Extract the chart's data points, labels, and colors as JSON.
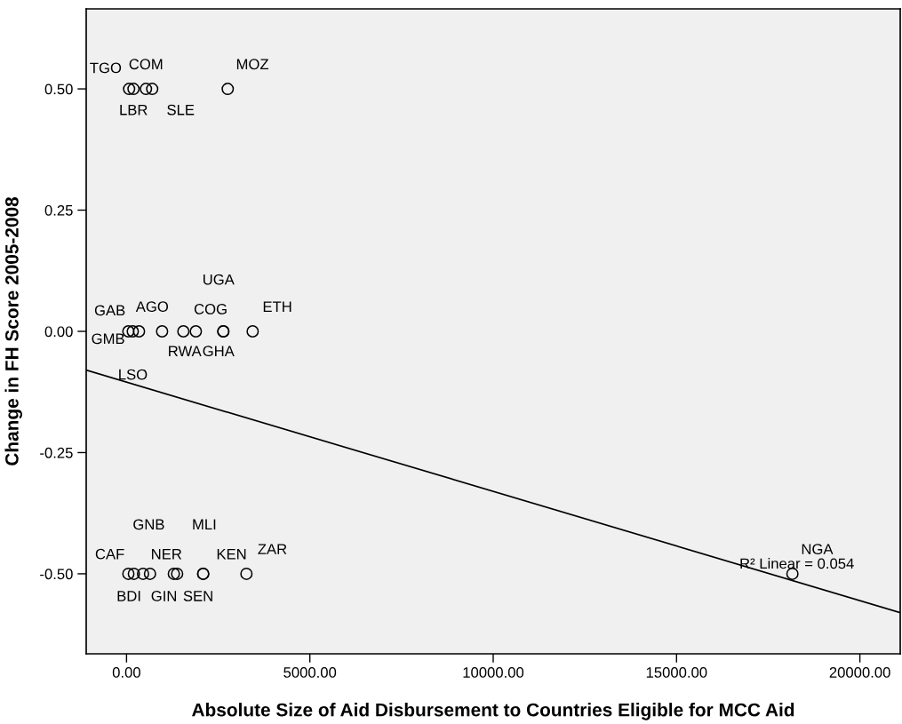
{
  "chart_data": {
    "type": "scatter",
    "xlabel": "Absolute Size of Aid Disbursement to Countries Eligible for MCC Aid",
    "ylabel": "Change in FH Score 2005-2008",
    "xlim": [
      -1100,
      21100
    ],
    "ylim": [
      -0.665,
      0.665
    ],
    "xticks": [
      {
        "value": 0,
        "label": "0.00"
      },
      {
        "value": 5000,
        "label": "5000.00"
      },
      {
        "value": 10000,
        "label": "10000.00"
      },
      {
        "value": 15000,
        "label": "15000.00"
      },
      {
        "value": 20000,
        "label": "20000.00"
      }
    ],
    "yticks": [
      {
        "value": -0.5,
        "label": "-0.50"
      },
      {
        "value": -0.25,
        "label": "-0.25"
      },
      {
        "value": 0,
        "label": "0.00"
      },
      {
        "value": 0.25,
        "label": "0.25"
      },
      {
        "value": 0.5,
        "label": "0.50"
      }
    ],
    "series": [
      {
        "color": "#000000",
        "marker": "circle",
        "x": [
          70,
          190,
          530,
          700,
          2760,
          50,
          170,
          340,
          970,
          1550,
          1890,
          2640,
          2640,
          3440,
          50,
          200,
          450,
          640,
          1290,
          1380,
          2090,
          2090,
          3270,
          18160
        ],
        "values": [
          0.5,
          0.5,
          0.5,
          0.5,
          0.5,
          0,
          0,
          0,
          0,
          0,
          0,
          0,
          0,
          0,
          -0.5,
          -0.5,
          -0.5,
          -0.5,
          -0.5,
          -0.5,
          -0.5,
          -0.5,
          -0.5,
          -0.5
        ],
        "value_labels": [
          "TGO",
          "LBR",
          "COM",
          "SLE",
          "MOZ",
          "GAB",
          "GMB",
          "LSO",
          "AGO",
          "RWA",
          "COG",
          "UGA",
          "GHA",
          "ETH",
          "CAF",
          "BDI",
          "GIN",
          "GNB",
          "NER",
          "MLI",
          "KEN",
          "SEN",
          "ZAR",
          "NGA"
        ]
      },
      {
        "type": "line",
        "color": "#000000",
        "line_style": "solid",
        "x": [
          -1100,
          21100
        ],
        "values": [
          -0.08,
          -0.58
        ]
      }
    ],
    "annotations": [
      "R² Linear = 0.054"
    ]
  }
}
